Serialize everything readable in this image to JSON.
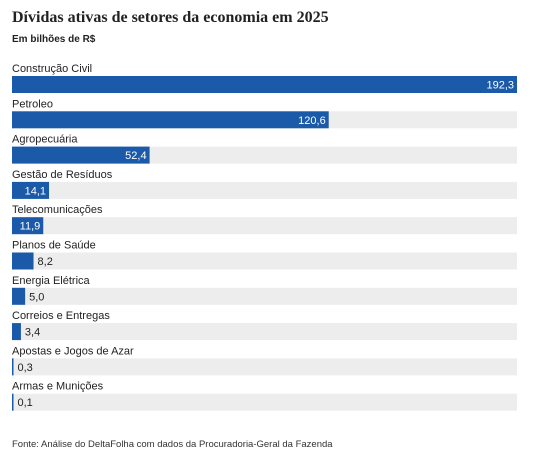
{
  "title": "Dívidas ativas de setores da economia em 2025",
  "subtitle": "Em bilhões de R$",
  "source": "Fonte: Análise do DeltaFolha com dados da Procuradoria-Geral da Fazenda",
  "colors": {
    "bar": "#1b5aa8",
    "track": "#ededed",
    "label_inside": "#ffffff",
    "label_outside": "#222222"
  },
  "chart_data": {
    "type": "bar",
    "orientation": "horizontal",
    "categories": [
      "Construção Civil",
      "Petroleo",
      "Agropecuária",
      "Gestão de Resíduos",
      "Telecomunicações",
      "Planos de Saúde",
      "Energia Elétrica",
      "Correios e Entregas",
      "Apostas e Jogos de Azar",
      "Armas e Munições"
    ],
    "values": [
      192.3,
      120.6,
      52.4,
      14.1,
      11.9,
      8.2,
      5.0,
      3.4,
      0.3,
      0.1
    ],
    "value_labels": [
      "192,3",
      "120,6",
      "52,4",
      "14,1",
      "11,9",
      "8,2",
      "5,0",
      "3,4",
      "0,3",
      "0,1"
    ],
    "xlim": [
      0,
      192.3
    ],
    "xlabel": "",
    "ylabel": "",
    "grid": false,
    "legend": "none"
  }
}
